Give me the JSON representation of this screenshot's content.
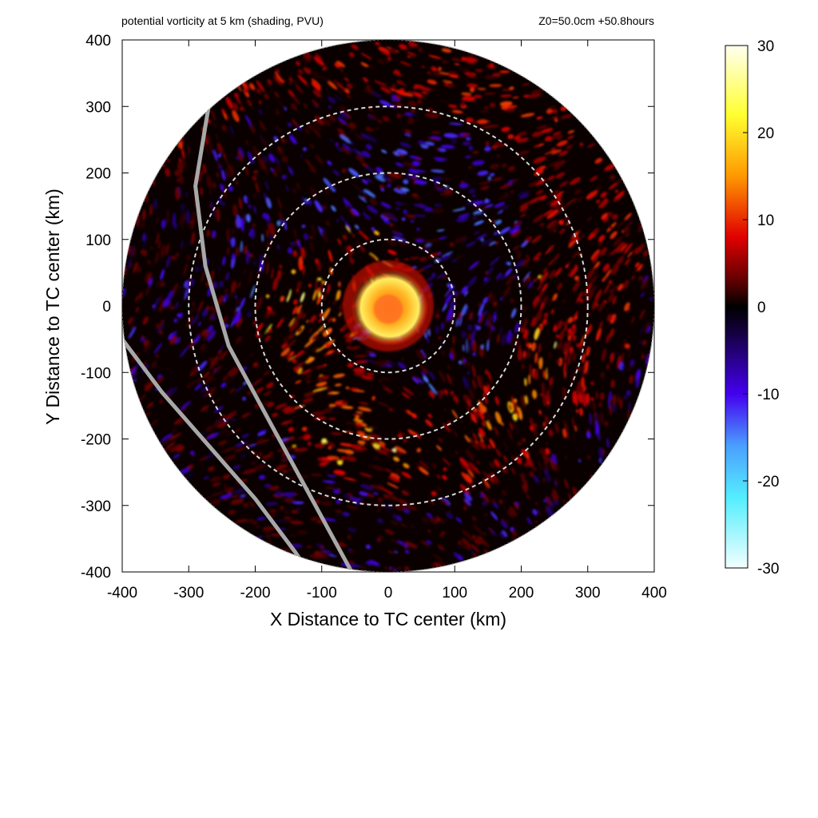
{
  "chart_data": {
    "type": "heatmap",
    "title": "potential vorticity at 5 km (shading, PVU)",
    "run_info": "Z0=50.0cm  +50.8hours",
    "xlabel": "X Distance to TC center (km)",
    "ylabel": "Y Distance to TC center (km)",
    "xlim": [
      -400,
      400
    ],
    "ylim": [
      -400,
      400
    ],
    "x_ticks": [
      "-400",
      "-300",
      "-200",
      "-100",
      "0",
      "100",
      "200",
      "300",
      "400"
    ],
    "y_ticks": [
      "400",
      "300",
      "200",
      "100",
      "0",
      "-100",
      "-200",
      "-300",
      "-400"
    ],
    "range_rings_km": [
      100,
      200,
      300
    ],
    "domain_radius_km": 400,
    "colorbar": {
      "range": [
        -30,
        30
      ],
      "ticks": [
        "30",
        "20",
        "10",
        "0",
        "-10",
        "-20",
        "-30"
      ],
      "colors": [
        {
          "value": 30,
          "color": "#fffff0"
        },
        {
          "value": 22,
          "color": "#ffff30"
        },
        {
          "value": 15,
          "color": "#ff9800"
        },
        {
          "value": 8,
          "color": "#e00000"
        },
        {
          "value": 3,
          "color": "#600000"
        },
        {
          "value": 0,
          "color": "#000000"
        },
        {
          "value": -3,
          "color": "#150040"
        },
        {
          "value": -10,
          "color": "#4400ee"
        },
        {
          "value": -16,
          "color": "#4aa0ff"
        },
        {
          "value": -22,
          "color": "#55eeff"
        },
        {
          "value": -30,
          "color": "#f2ffff"
        }
      ]
    },
    "features": {
      "core_pv": "approx. 20-30 PVU within 50 km",
      "spiral_bands": "alternating positive (red/yellow) and negative (blue) PV filaments",
      "tracks": [
        {
          "points": [
            [
              -270,
              300
            ],
            [
              -290,
              180
            ],
            [
              -275,
              60
            ],
            [
              -240,
              -60
            ],
            [
              -175,
              -180
            ],
            [
              -115,
              -290
            ],
            [
              -55,
              -400
            ]
          ]
        },
        {
          "points": [
            [
              -400,
              -50
            ],
            [
              -340,
              -130
            ],
            [
              -270,
              -210
            ],
            [
              -200,
              -290
            ],
            [
              -140,
              -370
            ],
            [
              -120,
              -400
            ]
          ]
        }
      ]
    }
  }
}
